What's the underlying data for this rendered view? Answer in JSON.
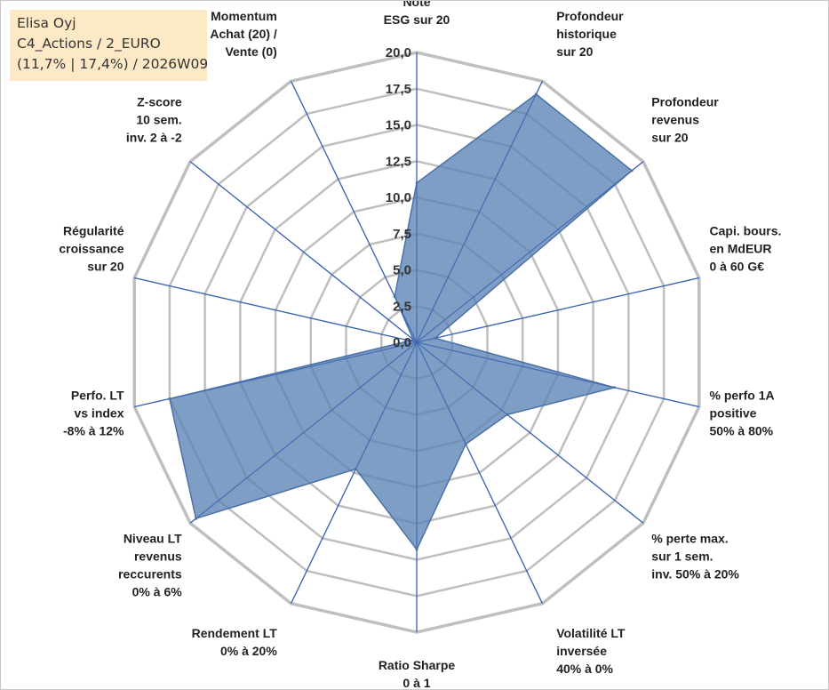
{
  "info": {
    "company": "Elisa Oyj",
    "portfolio": "C4_Actions / 2_EURO",
    "stats": "(11,7% | 17,4%) / 2026W09"
  },
  "colors": {
    "fill": "#5b83b6",
    "stroke": "#4a72a7",
    "grid": "#bfbfbf",
    "spoke": "#3a62b3"
  },
  "chart_data": {
    "type": "radar",
    "title": "",
    "rmin": 0,
    "rmax": 20,
    "ticks": [
      "0,0",
      "2,5",
      "5,0",
      "7,5",
      "10,0",
      "12,5",
      "15,0",
      "17,5",
      "20,0"
    ],
    "categories": [
      [
        "Note",
        "ESG sur 20"
      ],
      [
        "Profondeur",
        "historique",
        "sur 20"
      ],
      [
        "Profondeur",
        "revenus",
        "sur 20"
      ],
      [
        "Capi. bours.",
        "en MdEUR",
        "0 à 60 G€"
      ],
      [
        "% perfo 1A",
        "positive",
        "50% à 80%"
      ],
      [
        "% perte max.",
        "sur 1 sem.",
        "inv. 50% à 20%"
      ],
      [
        "Volatilité LT",
        "inversée",
        "40% à 0%"
      ],
      [
        "Ratio Sharpe",
        "0 à 1"
      ],
      [
        "Rendement LT",
        "0% à 20%"
      ],
      [
        "Niveau LT",
        "revenus",
        "reccurents",
        "0% à 6%"
      ],
      [
        "Perfo. LT",
        "vs index",
        "-8% à 12%"
      ],
      [
        "Régularité",
        "croissance",
        "sur 20"
      ],
      [
        "Z-score",
        "10 sem.",
        "inv. 2 à -2"
      ],
      [
        "Momentum",
        "Achat (20) /",
        "Vente (0)"
      ]
    ],
    "values": [
      11.0,
      19.0,
      19.0,
      1.3,
      14.0,
      8.0,
      7.8,
      14.3,
      9.7,
      19.5,
      17.5,
      0.5,
      0.3,
      3.5
    ],
    "grid": true,
    "legend": "none"
  }
}
